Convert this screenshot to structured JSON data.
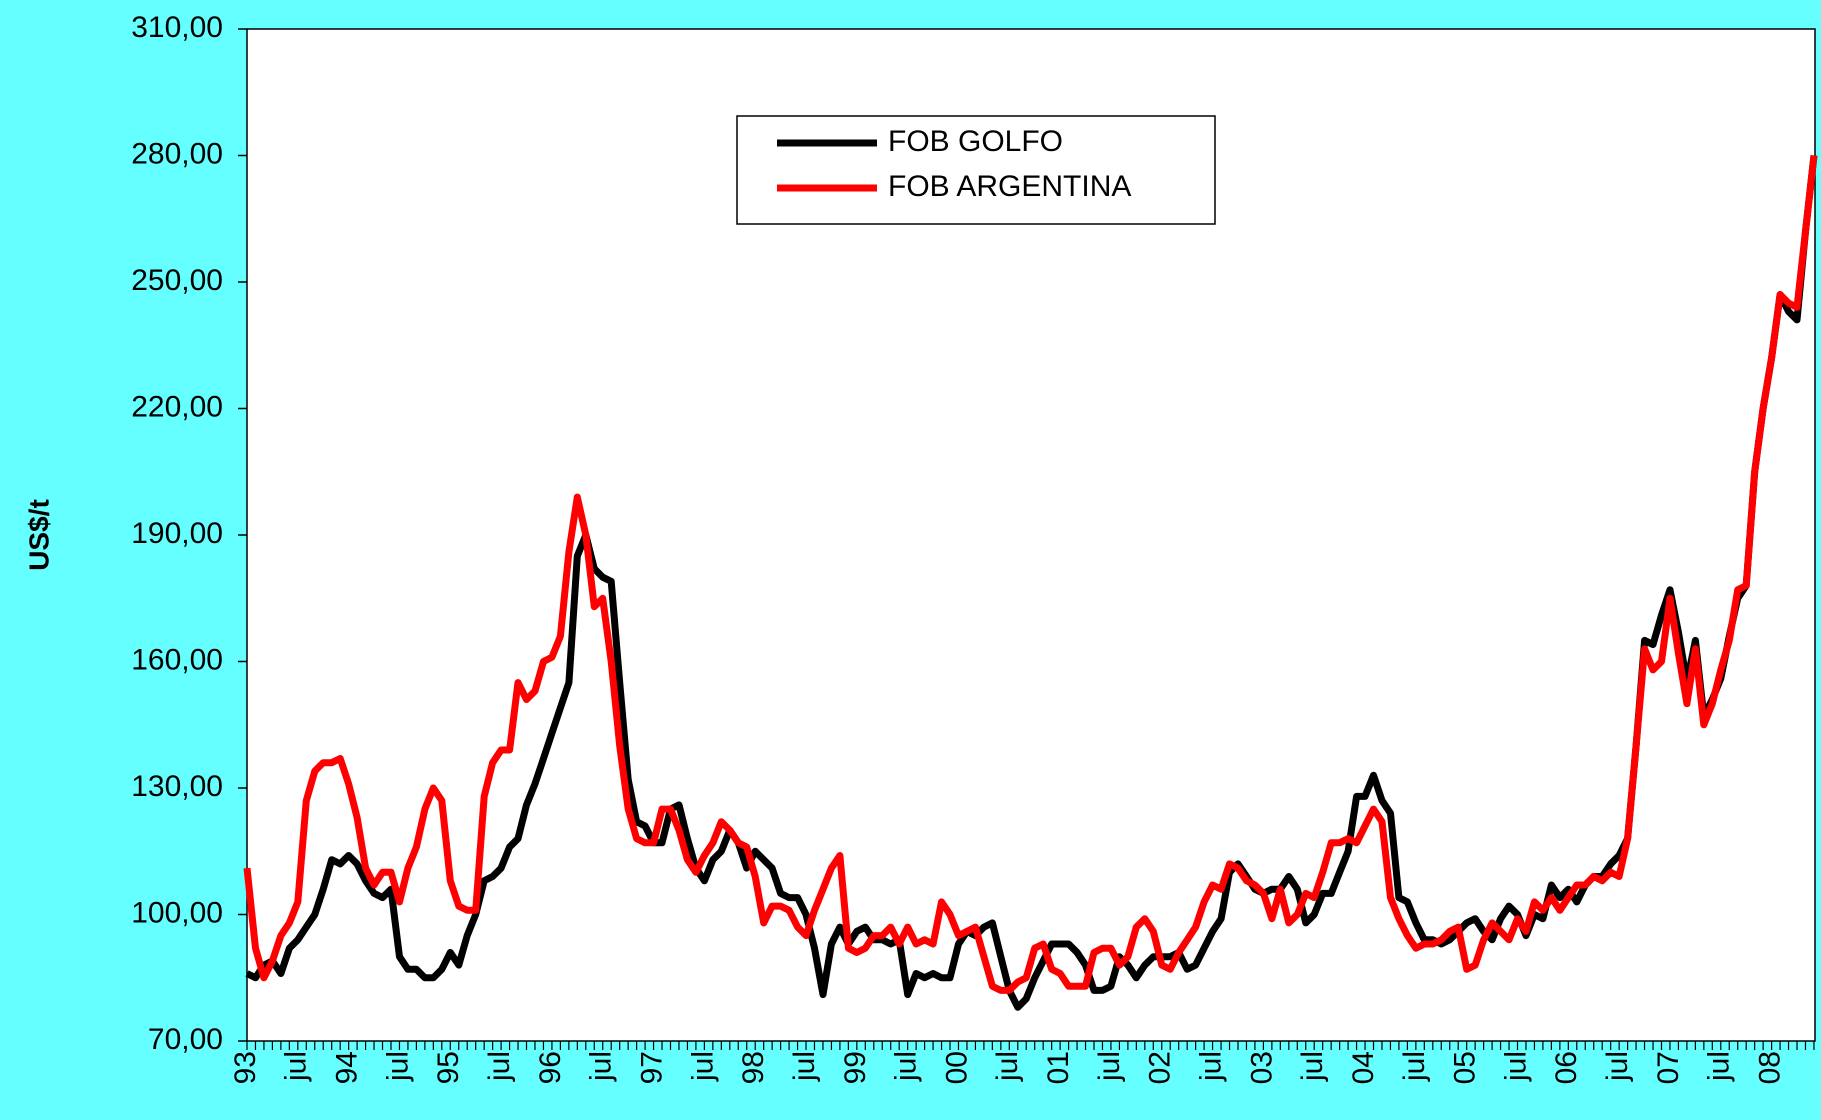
{
  "chart_data": {
    "type": "line",
    "y_label": "US$/t",
    "categories": [
      "93",
      null,
      null,
      null,
      null,
      null,
      "jul",
      null,
      null,
      null,
      null,
      null,
      "94",
      null,
      null,
      null,
      null,
      null,
      "jul",
      null,
      null,
      null,
      null,
      null,
      "95",
      null,
      null,
      null,
      null,
      null,
      "jul",
      null,
      null,
      null,
      null,
      null,
      "96",
      null,
      null,
      null,
      null,
      null,
      "jul",
      null,
      null,
      null,
      null,
      null,
      "97",
      null,
      null,
      null,
      null,
      null,
      "jul",
      null,
      null,
      null,
      null,
      null,
      "98",
      null,
      null,
      null,
      null,
      null,
      "jul",
      null,
      null,
      null,
      null,
      null,
      "99",
      null,
      null,
      null,
      null,
      null,
      "jul",
      null,
      null,
      null,
      null,
      null,
      "00",
      null,
      null,
      null,
      null,
      null,
      "jul",
      null,
      null,
      null,
      null,
      null,
      "01",
      null,
      null,
      null,
      null,
      null,
      "jul",
      null,
      null,
      null,
      null,
      null,
      "02",
      null,
      null,
      null,
      null,
      null,
      "jul",
      null,
      null,
      null,
      null,
      null,
      "03",
      null,
      null,
      null,
      null,
      null,
      "jul",
      null,
      null,
      null,
      null,
      null,
      "04",
      null,
      null,
      null,
      null,
      null,
      "jul",
      null,
      null,
      null,
      null,
      null,
      "05",
      null,
      null,
      null,
      null,
      null,
      "jul",
      null,
      null,
      null,
      null,
      null,
      "06",
      null,
      null,
      null,
      null,
      null,
      "jul",
      null,
      null,
      null,
      null,
      null,
      "07",
      null,
      null,
      null,
      null,
      null,
      "jul",
      null,
      null,
      null,
      null,
      null,
      "08",
      null,
      null,
      null,
      null,
      null
    ],
    "series": [
      {
        "name": "FOB GOLFO",
        "color": "#000000",
        "values": [
          86,
          85,
          88,
          89,
          86,
          92,
          94,
          97,
          100,
          106,
          113,
          112,
          114,
          112,
          108,
          105,
          104,
          106,
          90,
          87,
          87,
          85,
          85,
          87,
          91,
          88,
          95,
          100,
          108,
          109,
          111,
          116,
          118,
          126,
          131,
          137,
          143,
          149,
          155,
          185,
          190,
          182,
          180,
          179,
          155,
          132,
          122,
          121,
          117,
          117,
          125,
          126,
          118,
          111,
          108,
          113,
          115,
          120,
          117,
          111,
          115,
          113,
          111,
          105,
          104,
          104,
          100,
          92,
          81,
          93,
          97,
          93,
          96,
          97,
          94,
          94,
          93,
          94,
          81,
          86,
          85,
          86,
          85,
          85,
          93,
          96,
          95,
          97,
          98,
          90,
          82,
          78,
          80,
          85,
          89,
          93,
          93,
          93,
          91,
          88,
          82,
          82,
          83,
          90,
          88,
          85,
          88,
          90,
          90,
          90,
          91,
          87,
          88,
          92,
          96,
          99,
          110,
          112,
          109,
          106,
          105,
          106,
          106,
          109,
          106,
          98,
          100,
          105,
          105,
          110,
          115,
          128,
          128,
          133,
          127,
          124,
          104,
          103,
          98,
          94,
          94,
          93,
          94,
          96,
          98,
          99,
          96,
          94,
          99,
          102,
          100,
          95,
          100,
          99,
          107,
          104,
          106,
          103,
          107,
          109,
          109,
          112,
          114,
          118,
          140,
          165,
          164,
          171,
          177,
          167,
          155,
          165,
          147,
          151,
          156,
          166,
          175,
          178,
          205,
          220,
          232,
          247,
          243,
          241,
          262,
          280
        ]
      },
      {
        "name": "FOB ARGENTINA",
        "color": "#ff0000",
        "values": [
          111,
          92,
          85,
          89,
          95,
          98,
          103,
          127,
          134,
          136,
          136,
          137,
          131,
          123,
          111,
          107,
          110,
          110,
          103,
          111,
          116,
          125,
          130,
          127,
          108,
          102,
          101,
          101,
          128,
          136,
          139,
          139,
          155,
          151,
          153,
          160,
          161,
          166,
          186,
          199,
          190,
          173,
          175,
          160,
          140,
          125,
          118,
          117,
          117,
          125,
          125,
          120,
          113,
          110,
          114,
          117,
          122,
          120,
          117,
          116,
          109,
          98,
          102,
          102,
          101,
          97,
          95,
          101,
          106,
          111,
          114,
          92,
          91,
          92,
          95,
          95,
          97,
          93,
          97,
          93,
          94,
          93,
          103,
          100,
          95,
          96,
          97,
          90,
          83,
          82,
          82,
          84,
          85,
          92,
          93,
          87,
          86,
          83,
          83,
          83,
          91,
          92,
          92,
          88,
          90,
          97,
          99,
          96,
          88,
          87,
          91,
          94,
          97,
          103,
          107,
          106,
          112,
          111,
          108,
          107,
          105,
          99,
          106,
          98,
          100,
          105,
          104,
          110,
          117,
          117,
          118,
          117,
          121,
          125,
          122,
          104,
          99,
          95,
          92,
          93,
          93,
          94,
          96,
          97,
          87,
          88,
          94,
          98,
          96,
          94,
          99,
          96,
          103,
          101,
          104,
          101,
          104,
          107,
          107,
          109,
          108,
          110,
          109,
          118,
          140,
          163,
          158,
          160,
          175,
          162,
          150,
          163,
          145,
          150,
          158,
          165,
          177,
          178,
          205,
          220,
          232,
          247,
          245,
          244,
          262,
          280
        ]
      }
    ],
    "ylim": [
      70,
      310
    ],
    "yticks": [
      {
        "value": 70,
        "label": "70,00"
      },
      {
        "value": 100,
        "label": "100,00"
      },
      {
        "value": 130,
        "label": "130,00"
      },
      {
        "value": 160,
        "label": "160,00"
      },
      {
        "value": 190,
        "label": "190,00"
      },
      {
        "value": 220,
        "label": "220,00"
      },
      {
        "value": 250,
        "label": "250,00"
      },
      {
        "value": 280,
        "label": "280,00"
      },
      {
        "value": 310,
        "label": "310,00"
      }
    ],
    "grid": false
  }
}
